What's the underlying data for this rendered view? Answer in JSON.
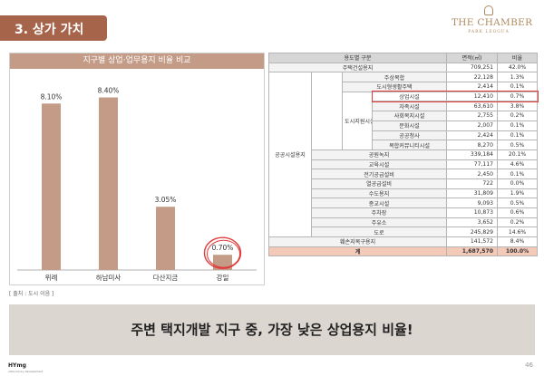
{
  "header": {
    "section_title": "3. 상가 가치"
  },
  "brand": {
    "name": "THE CHAMBER",
    "sub": "PARK LEGGUA"
  },
  "chart_data": {
    "type": "bar",
    "title": "지구별 상업·업무용지 비율 비교",
    "categories": [
      "위례",
      "하남미사",
      "다산지금",
      "강일"
    ],
    "values": [
      8.1,
      8.4,
      3.05,
      0.7
    ],
    "value_labels": [
      "8.10%",
      "8.40%",
      "3.05%",
      "0.70%"
    ],
    "unit": "%",
    "ylim": [
      0,
      9
    ],
    "bar_color": "#c39b86",
    "highlight_category": "강일",
    "highlight_color": "#e03a3a",
    "grid": false
  },
  "source_note": "[ 출처 : 도시 이음 ]",
  "table": {
    "headers": [
      "용도별 구분",
      "면적(㎡)",
      "비율"
    ],
    "residential": {
      "label": "주택건설용지",
      "area": "709,251",
      "ratio": "42.0%"
    },
    "public_group_label": "공공시설용지",
    "urban_support_label": "도시지원시설용지",
    "upper_rows": [
      {
        "label": "주상복합",
        "area": "22,128",
        "ratio": "1.3%"
      },
      {
        "label": "도시형생활주택",
        "area": "2,414",
        "ratio": "0.1%"
      }
    ],
    "support_rows": [
      {
        "label": "상업시설",
        "area": "12,410",
        "ratio": "0.7%"
      },
      {
        "label": "자족시설",
        "area": "63,610",
        "ratio": "3.8%"
      },
      {
        "label": "사회복지시설",
        "area": "2,755",
        "ratio": "0.2%"
      },
      {
        "label": "문화시설",
        "area": "2,007",
        "ratio": "0.1%"
      },
      {
        "label": "공공청사",
        "area": "2,424",
        "ratio": "0.1%"
      },
      {
        "label": "복합커뮤니티시설",
        "area": "8,270",
        "ratio": "0.5%"
      }
    ],
    "public_rows": [
      {
        "label": "공원녹지",
        "area": "339,184",
        "ratio": "20.1%"
      },
      {
        "label": "교육시설",
        "area": "77,117",
        "ratio": "4.6%"
      },
      {
        "label": "전기공급설비",
        "area": "2,450",
        "ratio": "0.1%"
      },
      {
        "label": "열공급설비",
        "area": "722",
        "ratio": "0.0%"
      },
      {
        "label": "수도용지",
        "area": "31,809",
        "ratio": "1.9%"
      },
      {
        "label": "종교시설",
        "area": "9,093",
        "ratio": "0.5%"
      },
      {
        "label": "주차장",
        "area": "10,873",
        "ratio": "0.6%"
      },
      {
        "label": "주유소",
        "area": "3,652",
        "ratio": "0.2%"
      },
      {
        "label": "도로",
        "area": "245,829",
        "ratio": "14.6%"
      }
    ],
    "green_belt": {
      "label": "훼손지복구용지",
      "area": "141,572",
      "ratio": "8.4%"
    },
    "total": {
      "label": "계",
      "area": "1,687,570",
      "ratio": "100.0%"
    }
  },
  "banner": {
    "text": "주변 택지개발 지구 중, 가장 낮은 상업용지 비율!"
  },
  "footer": {
    "logo": "HY",
    "logo_small": "mg",
    "tagline": "ultra-luxury development",
    "page": "46"
  }
}
